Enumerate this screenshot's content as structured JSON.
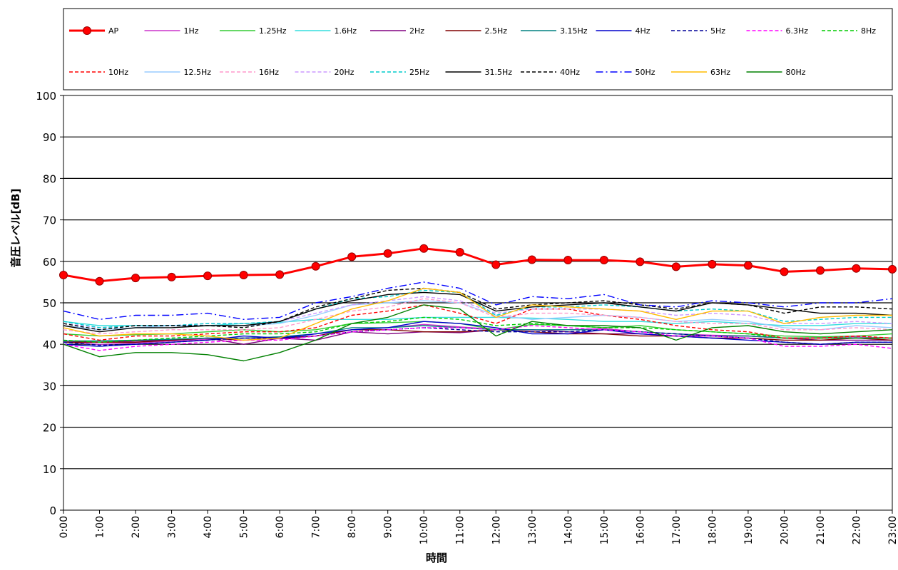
{
  "chart_data": {
    "type": "line",
    "title": "",
    "xlabel": "時間",
    "ylabel": "音圧レベル[dB]",
    "ylim": [
      0,
      100
    ],
    "yticks": [
      0,
      10,
      20,
      30,
      40,
      50,
      60,
      70,
      80,
      90,
      100
    ],
    "grid": "horizontal",
    "legend_placement": "top",
    "categories": [
      "0:00",
      "1:00",
      "2:00",
      "3:00",
      "4:00",
      "5:00",
      "6:00",
      "7:00",
      "8:00",
      "9:00",
      "10:00",
      "11:00",
      "12:00",
      "13:00",
      "14:00",
      "15:00",
      "16:00",
      "17:00",
      "18:00",
      "19:00",
      "20:00",
      "21:00",
      "22:00",
      "23:00"
    ],
    "series": [
      {
        "name": "AP",
        "color": "#ff0000",
        "dash": "solid",
        "marker": true,
        "values": [
          56.7,
          55.2,
          56.0,
          56.2,
          56.5,
          56.7,
          56.8,
          58.8,
          61.1,
          61.9,
          63.1,
          62.2,
          59.2,
          60.4,
          60.3,
          60.3,
          59.9,
          58.7,
          59.3,
          59.0,
          57.5,
          57.8,
          58.3,
          58.1
        ]
      },
      {
        "name": "1Hz",
        "color": "#cc33cc",
        "dash": "solid",
        "marker": false,
        "values": [
          40.5,
          40.0,
          40.3,
          40.8,
          41.2,
          41.5,
          41.3,
          42.0,
          43.5,
          44.0,
          44.8,
          44.2,
          43.6,
          43.4,
          43.5,
          43.8,
          43.0,
          42.5,
          42.2,
          42.0,
          41.5,
          41.6,
          41.8,
          41.5
        ]
      },
      {
        "name": "1.25Hz",
        "color": "#33cc33",
        "dash": "solid",
        "marker": false,
        "values": [
          42.5,
          42.0,
          42.3,
          42.5,
          43.0,
          43.5,
          43.0,
          43.5,
          45.0,
          45.2,
          45.5,
          45.0,
          43.5,
          44.8,
          44.5,
          44.0,
          44.5,
          43.5,
          43.0,
          42.5,
          42.0,
          41.8,
          42.0,
          42.5
        ]
      },
      {
        "name": "1.6Hz",
        "color": "#33dddd",
        "dash": "solid",
        "marker": false,
        "values": [
          45.5,
          44.5,
          44.5,
          44.5,
          44.5,
          45.0,
          45.3,
          46.0,
          46.0,
          46.0,
          46.5,
          46.5,
          46.5,
          46.3,
          46.0,
          45.5,
          45.5,
          45.0,
          45.5,
          45.0,
          44.5,
          44.5,
          45.0,
          45.0
        ]
      },
      {
        "name": "2Hz",
        "color": "#800080",
        "dash": "solid",
        "marker": false,
        "values": [
          40.8,
          40.5,
          40.8,
          41.0,
          41.5,
          40.0,
          41.5,
          41.0,
          43.0,
          42.5,
          43.0,
          42.8,
          43.5,
          43.5,
          43.0,
          42.5,
          42.5,
          42.0,
          42.0,
          42.0,
          41.5,
          41.0,
          41.0,
          41.0
        ]
      },
      {
        "name": "2.5Hz",
        "color": "#800000",
        "dash": "solid",
        "marker": false,
        "values": [
          40.5,
          40.5,
          40.5,
          41.0,
          41.5,
          41.0,
          41.5,
          42.0,
          43.5,
          43.5,
          43.0,
          43.0,
          43.5,
          43.0,
          42.5,
          42.5,
          42.0,
          42.0,
          41.5,
          41.5,
          41.0,
          41.0,
          41.5,
          41.0
        ]
      },
      {
        "name": "3.15Hz",
        "color": "#008080",
        "dash": "solid",
        "marker": false,
        "values": [
          40.8,
          40.8,
          41.0,
          41.2,
          41.5,
          41.5,
          41.8,
          42.5,
          44.0,
          44.0,
          44.5,
          44.0,
          43.5,
          43.5,
          43.5,
          43.5,
          43.0,
          42.5,
          42.0,
          42.0,
          41.5,
          41.5,
          41.5,
          41.5
        ]
      },
      {
        "name": "4Hz",
        "color": "#0000cc",
        "dash": "solid",
        "marker": false,
        "values": [
          40.0,
          39.5,
          40.0,
          40.5,
          41.0,
          42.0,
          41.5,
          42.5,
          43.5,
          44.0,
          45.5,
          45.0,
          44.0,
          42.5,
          42.5,
          43.5,
          42.5,
          42.0,
          41.5,
          41.0,
          40.5,
          40.0,
          40.5,
          40.5
        ]
      },
      {
        "name": "5Hz",
        "color": "#000099",
        "dash": "dash",
        "marker": false,
        "values": [
          40.5,
          39.8,
          40.0,
          40.5,
          41.0,
          41.5,
          41.5,
          42.0,
          43.0,
          43.5,
          44.0,
          43.5,
          43.0,
          43.0,
          43.0,
          43.5,
          43.0,
          42.5,
          42.0,
          41.5,
          40.5,
          40.0,
          40.5,
          40.5
        ]
      },
      {
        "name": "6.3Hz",
        "color": "#ff00ff",
        "dash": "dash",
        "marker": false,
        "values": [
          40.0,
          38.5,
          39.5,
          40.0,
          40.5,
          41.0,
          41.0,
          42.0,
          43.0,
          43.5,
          44.0,
          44.0,
          43.5,
          44.5,
          44.0,
          43.5,
          43.0,
          42.0,
          42.0,
          41.5,
          39.5,
          39.5,
          40.0,
          39.0
        ]
      },
      {
        "name": "8Hz",
        "color": "#00cc00",
        "dash": "dash",
        "marker": false,
        "values": [
          41.0,
          40.5,
          41.0,
          41.5,
          42.0,
          42.5,
          42.5,
          43.0,
          45.0,
          45.5,
          46.5,
          46.0,
          44.5,
          45.0,
          44.5,
          44.0,
          44.0,
          43.5,
          43.0,
          42.5,
          41.5,
          41.5,
          41.5,
          41.5
        ]
      },
      {
        "name": "10Hz",
        "color": "#ff0000",
        "dash": "dash",
        "marker": false,
        "values": [
          42.5,
          41.0,
          42.0,
          42.0,
          42.5,
          43.0,
          43.0,
          44.0,
          47.0,
          48.0,
          49.5,
          47.5,
          45.0,
          48.5,
          48.5,
          47.0,
          46.0,
          44.5,
          43.5,
          43.0,
          41.5,
          41.5,
          42.0,
          41.5
        ]
      },
      {
        "name": "12.5Hz",
        "color": "#99ccff",
        "dash": "solid",
        "marker": false,
        "values": [
          44.5,
          43.5,
          44.0,
          44.5,
          44.5,
          44.5,
          45.0,
          47.0,
          49.5,
          50.0,
          50.5,
          50.0,
          47.0,
          46.0,
          46.5,
          47.0,
          46.5,
          45.5,
          46.0,
          45.5,
          44.0,
          43.5,
          44.5,
          44.0
        ]
      },
      {
        "name": "16Hz",
        "color": "#ff99cc",
        "dash": "dash",
        "marker": false,
        "values": [
          43.5,
          42.5,
          43.0,
          43.5,
          43.5,
          43.5,
          44.0,
          46.0,
          48.0,
          49.0,
          51.0,
          50.0,
          46.5,
          47.5,
          47.5,
          47.0,
          46.5,
          45.5,
          45.0,
          45.0,
          43.5,
          43.5,
          44.0,
          43.5
        ]
      },
      {
        "name": "20Hz",
        "color": "#cc99ff",
        "dash": "dash",
        "marker": false,
        "values": [
          45.0,
          44.0,
          44.5,
          44.5,
          45.0,
          45.0,
          45.5,
          47.5,
          49.5,
          50.5,
          51.5,
          50.5,
          47.5,
          48.5,
          48.5,
          48.5,
          48.0,
          47.0,
          47.5,
          47.0,
          45.0,
          45.0,
          45.5,
          45.0
        ]
      },
      {
        "name": "25Hz",
        "color": "#00cccc",
        "dash": "dash",
        "marker": false,
        "values": [
          45.5,
          44.0,
          44.5,
          44.5,
          45.0,
          45.0,
          45.5,
          48.5,
          51.0,
          51.5,
          53.0,
          52.5,
          47.0,
          49.0,
          49.0,
          49.5,
          49.0,
          48.0,
          48.5,
          48.0,
          45.5,
          46.0,
          46.5,
          46.5
        ]
      },
      {
        "name": "31.5Hz",
        "color": "#000000",
        "dash": "solid",
        "marker": false,
        "values": [
          44.5,
          43.0,
          44.0,
          44.0,
          44.5,
          44.5,
          45.5,
          48.5,
          50.5,
          52.0,
          52.5,
          52.0,
          48.0,
          49.0,
          49.5,
          50.0,
          49.0,
          48.0,
          50.0,
          49.5,
          48.5,
          47.5,
          47.5,
          47.0
        ]
      },
      {
        "name": "40Hz",
        "color": "#000000",
        "dash": "dash",
        "marker": false,
        "values": [
          45.0,
          43.5,
          44.5,
          44.5,
          44.5,
          44.0,
          45.5,
          49.0,
          51.0,
          53.0,
          53.5,
          52.5,
          48.5,
          49.5,
          50.0,
          50.5,
          49.5,
          48.5,
          50.0,
          49.5,
          47.5,
          49.0,
          49.0,
          48.5
        ]
      },
      {
        "name": "50Hz",
        "color": "#0000ff",
        "dash": "dashdot",
        "marker": false,
        "values": [
          48.0,
          46.0,
          47.0,
          47.0,
          47.5,
          46.0,
          46.5,
          50.0,
          51.5,
          53.5,
          55.0,
          53.5,
          49.5,
          51.5,
          51.0,
          52.0,
          49.5,
          49.0,
          50.5,
          50.0,
          49.0,
          50.0,
          50.0,
          51.0
        ]
      },
      {
        "name": "63Hz",
        "color": "#ffbb00",
        "dash": "solid",
        "marker": false,
        "values": [
          44.0,
          42.0,
          42.5,
          42.5,
          42.0,
          41.0,
          41.5,
          45.0,
          48.5,
          50.5,
          53.5,
          52.5,
          46.5,
          49.5,
          49.0,
          48.5,
          48.0,
          46.0,
          48.0,
          48.0,
          45.0,
          46.5,
          47.0,
          47.0
        ]
      },
      {
        "name": "80Hz",
        "color": "#008000",
        "dash": "solid",
        "marker": false,
        "values": [
          40.0,
          37.0,
          38.0,
          38.0,
          37.5,
          36.0,
          38.0,
          41.0,
          45.0,
          46.5,
          49.5,
          48.5,
          42.0,
          45.5,
          44.5,
          44.5,
          44.0,
          41.0,
          44.0,
          44.5,
          43.0,
          42.5,
          43.0,
          43.5
        ]
      }
    ]
  }
}
